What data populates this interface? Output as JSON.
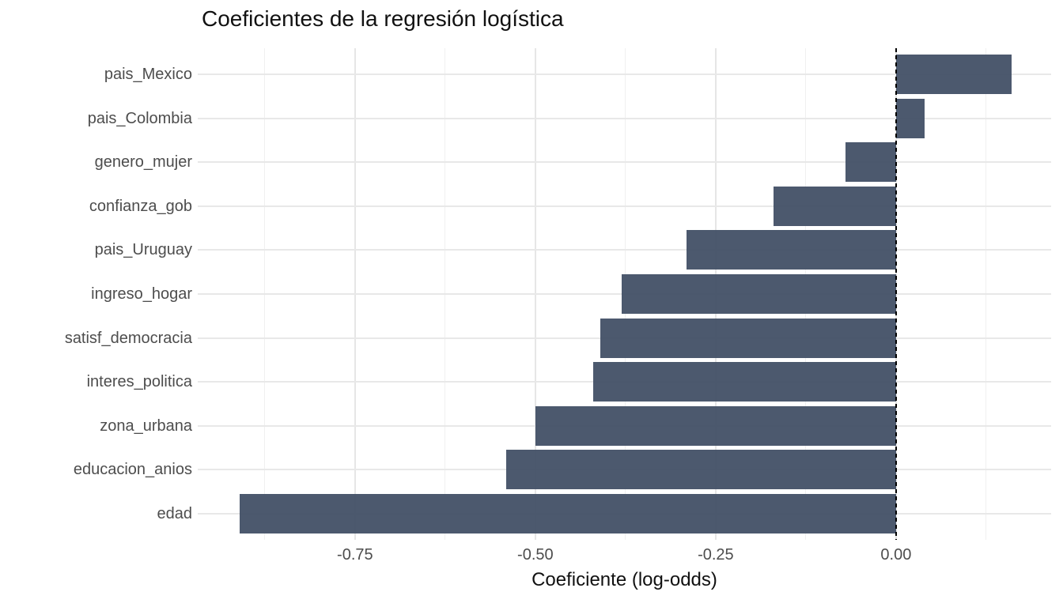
{
  "chart_data": {
    "type": "bar",
    "orientation": "horizontal",
    "title": "Coeficientes de la regresión logística",
    "xlabel": "Coeficiente (log-odds)",
    "categories": [
      "pais_Mexico",
      "pais_Colombia",
      "genero_mujer",
      "confianza_gob",
      "pais_Uruguay",
      "ingreso_hogar",
      "satisf_democracia",
      "interes_politica",
      "zona_urbana",
      "educacion_anios",
      "edad"
    ],
    "values": [
      0.16,
      0.04,
      -0.07,
      -0.17,
      -0.29,
      -0.38,
      -0.41,
      -0.42,
      -0.5,
      -0.54,
      -0.91
    ],
    "x_ticks": [
      -0.75,
      -0.5,
      -0.25,
      0
    ],
    "x_tick_labels": [
      "-0.75",
      "-0.50",
      "-0.25",
      "0.00"
    ],
    "x_minor_ticks": [
      -0.875,
      -0.625,
      -0.375,
      -0.125,
      0.125
    ],
    "x_range": [
      -0.968,
      0.215
    ],
    "bar_color": "#47586E",
    "zero_line": {
      "value": 0,
      "style": "dashed",
      "color": "#000000"
    },
    "grid": {
      "visible": true,
      "major_color": "#E6E6E6",
      "minor_color": "#F0F0F0"
    },
    "background": "#FFFFFF",
    "legend": "none"
  }
}
